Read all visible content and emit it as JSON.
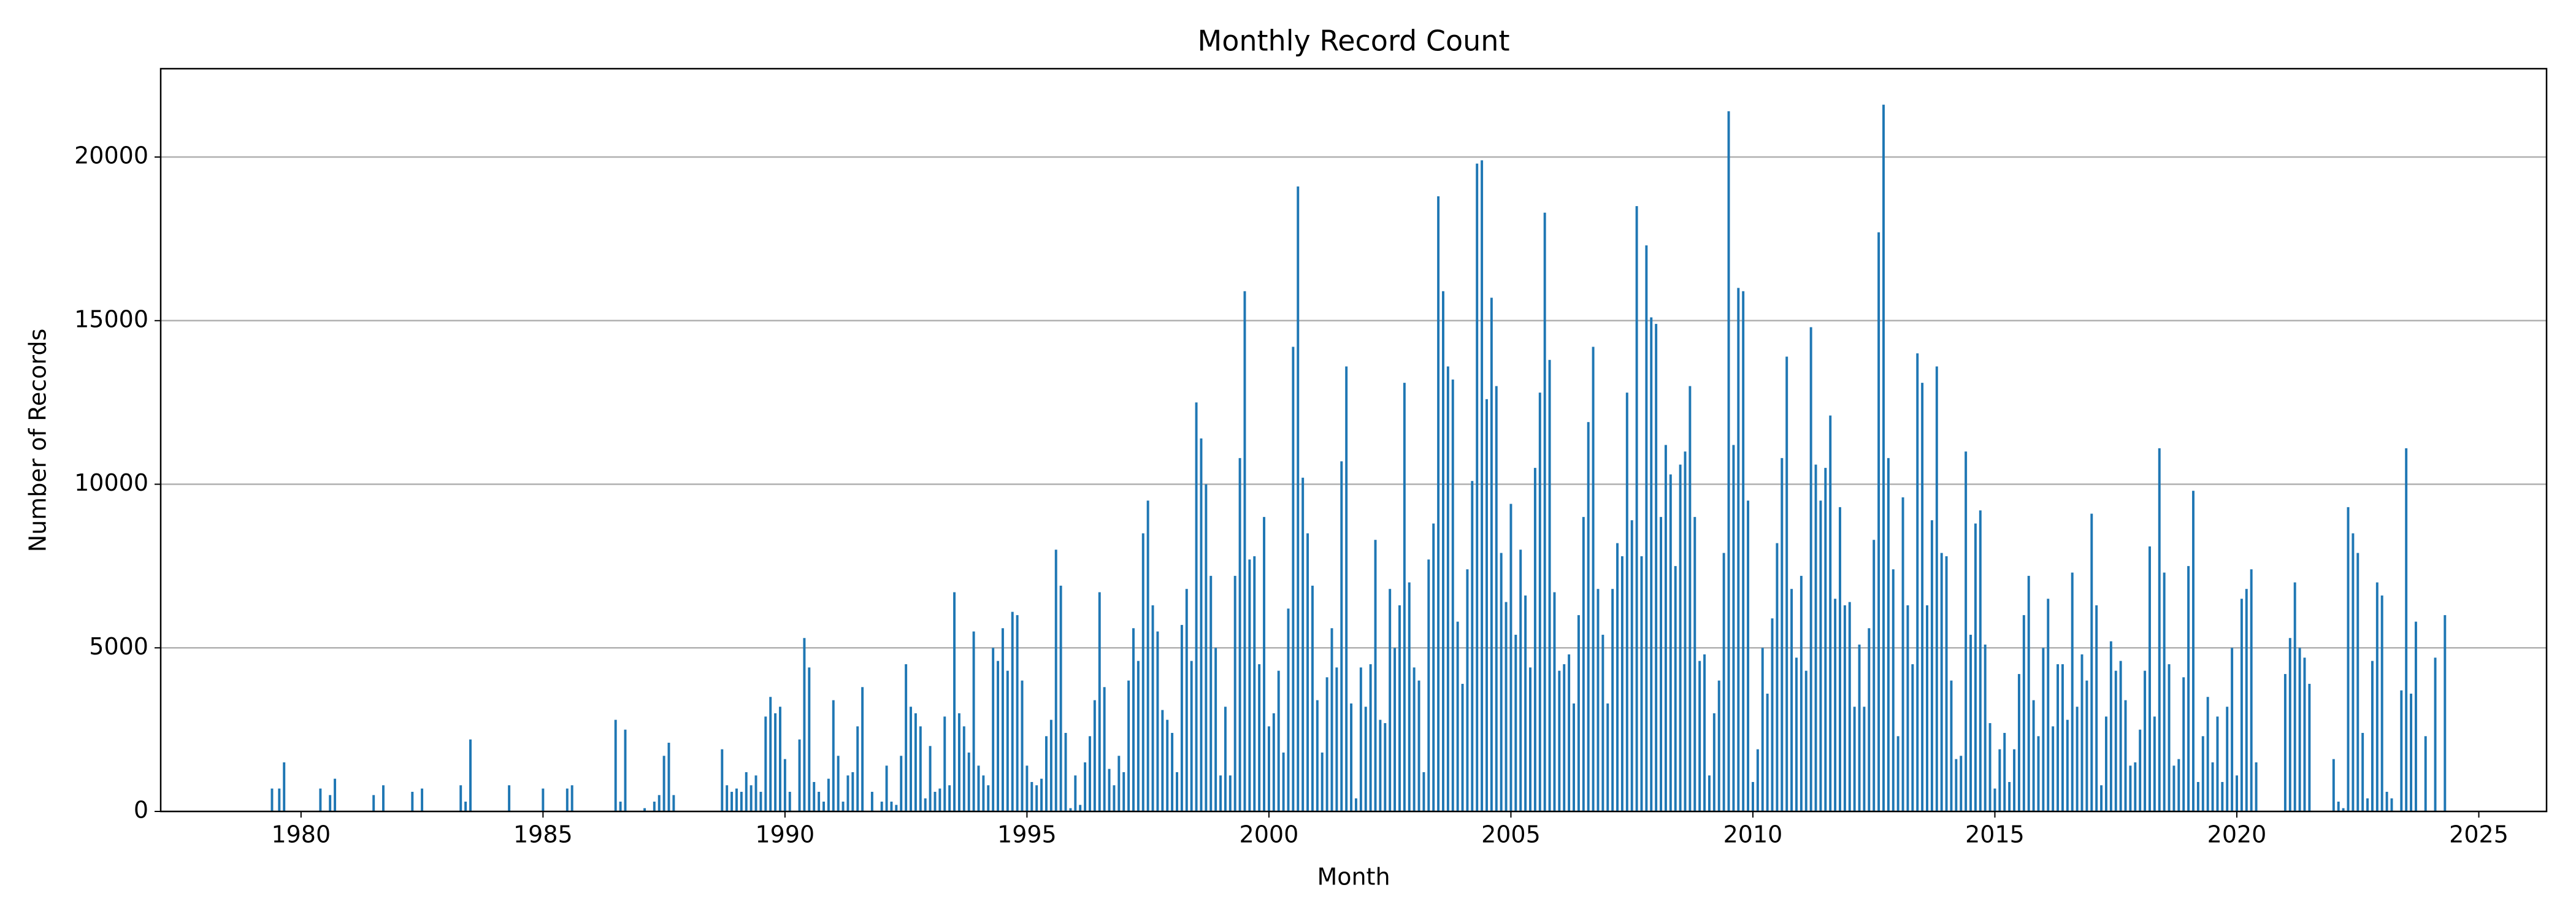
{
  "chart_data": {
    "type": "bar",
    "title": "Monthly Record Count",
    "x_label": "Month",
    "y_label": "Number of Records",
    "color": "#1f77b4",
    "grid": "y",
    "xlim": [
      1977.1,
      2026.4
    ],
    "xticks": [
      1980,
      1985,
      1990,
      1995,
      2000,
      2005,
      2010,
      2015,
      2020,
      2025
    ],
    "ylim": [
      0,
      22700
    ],
    "yticks": [
      0,
      5000,
      10000,
      15000,
      20000
    ],
    "x": [
      1979.4,
      1979.55,
      1979.65,
      1980.4,
      1980.6,
      1980.7,
      1981.5,
      1981.7,
      1982.3,
      1982.5,
      1983.3,
      1983.4,
      1983.5,
      1984.3,
      1985.0,
      1985.5,
      1985.6,
      1986.5,
      1986.6,
      1986.7,
      1987.1,
      1987.3,
      1987.4,
      1987.5,
      1987.6,
      1987.7,
      1988.7,
      1988.8,
      1988.9,
      1989.0,
      1989.1,
      1989.2,
      1989.3,
      1989.4,
      1989.5,
      1989.6,
      1989.7,
      1989.8,
      1989.9,
      1990.0,
      1990.1,
      1990.3,
      1990.4,
      1990.5,
      1990.6,
      1990.7,
      1990.8,
      1990.9,
      1991.0,
      1991.1,
      1991.2,
      1991.3,
      1991.4,
      1991.5,
      1991.6,
      1991.8,
      1992.0,
      1992.1,
      1992.2,
      1992.3,
      1992.4,
      1992.5,
      1992.6,
      1992.7,
      1992.8,
      1992.9,
      1993.0,
      1993.1,
      1993.2,
      1993.3,
      1993.4,
      1993.5,
      1993.6,
      1993.7,
      1993.8,
      1993.9,
      1994.0,
      1994.1,
      1994.2,
      1994.3,
      1994.4,
      1994.5,
      1994.6,
      1994.7,
      1994.8,
      1994.9,
      1995.0,
      1995.1,
      1995.2,
      1995.3,
      1995.4,
      1995.5,
      1995.6,
      1995.7,
      1995.8,
      1995.9,
      1996.0,
      1996.1,
      1996.2,
      1996.3,
      1996.4,
      1996.5,
      1996.6,
      1996.7,
      1996.8,
      1996.9,
      1997.0,
      1997.1,
      1997.2,
      1997.3,
      1997.4,
      1997.5,
      1997.6,
      1997.7,
      1997.8,
      1997.9,
      1998.0,
      1998.1,
      1998.2,
      1998.3,
      1998.4,
      1998.5,
      1998.6,
      1998.7,
      1998.8,
      1998.9,
      1999.0,
      1999.1,
      1999.2,
      1999.3,
      1999.4,
      1999.5,
      1999.6,
      1999.7,
      1999.8,
      1999.9,
      2000.0,
      2000.1,
      2000.2,
      2000.3,
      2000.4,
      2000.5,
      2000.6,
      2000.7,
      2000.8,
      2000.9,
      2001.0,
      2001.1,
      2001.2,
      2001.3,
      2001.4,
      2001.5,
      2001.6,
      2001.7,
      2001.8,
      2001.9,
      2002.0,
      2002.1,
      2002.2,
      2002.3,
      2002.4,
      2002.5,
      2002.6,
      2002.7,
      2002.8,
      2002.9,
      2003.0,
      2003.1,
      2003.2,
      2003.3,
      2003.4,
      2003.5,
      2003.6,
      2003.7,
      2003.8,
      2003.9,
      2004.0,
      2004.1,
      2004.2,
      2004.3,
      2004.4,
      2004.5,
      2004.6,
      2004.7,
      2004.8,
      2004.9,
      2005.0,
      2005.1,
      2005.2,
      2005.3,
      2005.4,
      2005.5,
      2005.6,
      2005.7,
      2005.8,
      2005.9,
      2006.0,
      2006.1,
      2006.2,
      2006.3,
      2006.4,
      2006.5,
      2006.6,
      2006.7,
      2006.8,
      2006.9,
      2007.0,
      2007.1,
      2007.2,
      2007.3,
      2007.4,
      2007.5,
      2007.6,
      2007.7,
      2007.8,
      2007.9,
      2008.0,
      2008.1,
      2008.2,
      2008.3,
      2008.4,
      2008.5,
      2008.6,
      2008.7,
      2008.8,
      2008.9,
      2009.0,
      2009.1,
      2009.2,
      2009.3,
      2009.4,
      2009.5,
      2009.6,
      2009.7,
      2009.8,
      2009.9,
      2010.0,
      2010.1,
      2010.2,
      2010.3,
      2010.4,
      2010.5,
      2010.6,
      2010.7,
      2010.8,
      2010.9,
      2011.0,
      2011.1,
      2011.2,
      2011.3,
      2011.4,
      2011.5,
      2011.6,
      2011.7,
      2011.8,
      2011.9,
      2012.0,
      2012.1,
      2012.2,
      2012.3,
      2012.4,
      2012.5,
      2012.6,
      2012.7,
      2012.8,
      2012.9,
      2013.0,
      2013.1,
      2013.2,
      2013.3,
      2013.4,
      2013.5,
      2013.6,
      2013.7,
      2013.8,
      2013.9,
      2014.0,
      2014.1,
      2014.2,
      2014.3,
      2014.4,
      2014.5,
      2014.6,
      2014.7,
      2014.8,
      2014.9,
      2015.0,
      2015.1,
      2015.2,
      2015.3,
      2015.4,
      2015.5,
      2015.6,
      2015.7,
      2015.8,
      2015.9,
      2016.0,
      2016.1,
      2016.2,
      2016.3,
      2016.4,
      2016.5,
      2016.6,
      2016.7,
      2016.8,
      2016.9,
      2017.0,
      2017.1,
      2017.2,
      2017.3,
      2017.4,
      2017.5,
      2017.6,
      2017.7,
      2017.8,
      2017.9,
      2018.0,
      2018.1,
      2018.2,
      2018.3,
      2018.4,
      2018.5,
      2018.6,
      2018.7,
      2018.8,
      2018.9,
      2019.0,
      2019.1,
      2019.2,
      2019.3,
      2019.4,
      2019.5,
      2019.6,
      2019.7,
      2019.8,
      2019.9,
      2020.0,
      2020.1,
      2020.2,
      2020.3,
      2020.4,
      2021.0,
      2021.1,
      2021.2,
      2021.3,
      2021.4,
      2021.5,
      2022.0,
      2022.1,
      2022.2,
      2022.3,
      2022.4,
      2022.5,
      2022.6,
      2022.7,
      2022.8,
      2022.9,
      2023.0,
      2023.1,
      2023.2,
      2023.4,
      2023.5,
      2023.6,
      2023.7,
      2023.9,
      2024.1,
      2024.3
    ],
    "values": [
      700,
      700,
      1500,
      700,
      500,
      1000,
      500,
      800,
      600,
      700,
      800,
      300,
      2200,
      800,
      700,
      700,
      800,
      2800,
      300,
      2500,
      100,
      300,
      500,
      1700,
      2100,
      500,
      1900,
      800,
      600,
      700,
      600,
      1200,
      800,
      1100,
      600,
      2900,
      3500,
      3000,
      3200,
      1600,
      600,
      2200,
      5300,
      4400,
      900,
      600,
      300,
      1000,
      3400,
      1700,
      300,
      1100,
      1200,
      2600,
      3800,
      600,
      300,
      1400,
      300,
      200,
      1700,
      4500,
      3200,
      3000,
      2600,
      400,
      2000,
      600,
      700,
      2900,
      800,
      6700,
      3000,
      2600,
      1800,
      5500,
      1400,
      1100,
      800,
      5000,
      4600,
      5600,
      4300,
      6100,
      6000,
      4000,
      1400,
      900,
      800,
      1000,
      2300,
      2800,
      8000,
      6900,
      2400,
      100,
      1100,
      200,
      1500,
      2300,
      3400,
      6700,
      3800,
      1300,
      800,
      1700,
      1200,
      4000,
      5600,
      4600,
      8500,
      9500,
      6300,
      5500,
      3100,
      2800,
      2400,
      1200,
      5700,
      6800,
      4600,
      12500,
      11400,
      10000,
      7200,
      5000,
      1100,
      3200,
      1100,
      7200,
      10800,
      15900,
      7700,
      7800,
      4500,
      9000,
      2600,
      3000,
      4300,
      1800,
      6200,
      14200,
      19100,
      10200,
      8500,
      6900,
      3400,
      1800,
      4100,
      5600,
      4400,
      10700,
      13600,
      3300,
      400,
      4400,
      3200,
      4500,
      8300,
      2800,
      2700,
      6800,
      5000,
      6300,
      13100,
      7000,
      4400,
      4000,
      1200,
      7700,
      8800,
      18800,
      15900,
      13600,
      13200,
      5800,
      3900,
      7400,
      10100,
      19800,
      19900,
      12600,
      15700,
      13000,
      7900,
      6400,
      9400,
      5400,
      8000,
      6600,
      4400,
      10500,
      12800,
      18300,
      13800,
      6700,
      4300,
      4500,
      4800,
      3300,
      6000,
      9000,
      11900,
      14200,
      6800,
      5400,
      3300,
      6800,
      8200,
      7800,
      12800,
      8900,
      18500,
      7800,
      17300,
      15100,
      14900,
      9000,
      11200,
      10300,
      7500,
      10600,
      11000,
      13000,
      9000,
      4600,
      4800,
      1100,
      3000,
      4000,
      7900,
      21400,
      11200,
      16000,
      15900,
      9500,
      900,
      1900,
      5000,
      3600,
      5900,
      8200,
      10800,
      13900,
      6800,
      4700,
      7200,
      4300,
      14800,
      10600,
      9500,
      10500,
      12100,
      6500,
      9300,
      6300,
      6400,
      3200,
      5100,
      3200,
      5600,
      8300,
      17700,
      21600,
      10800,
      7400,
      2300,
      9600,
      6300,
      4500,
      14000,
      13100,
      6300,
      8900,
      13600,
      7900,
      7800,
      4000,
      1600,
      1700,
      11000,
      5400,
      8800,
      9200,
      5100,
      2700,
      700,
      1900,
      2400,
      900,
      1900,
      4200,
      6000,
      7200,
      3400,
      2300,
      5000,
      6500,
      2600,
      4500,
      4500,
      2800,
      7300,
      3200,
      4800,
      4000,
      9100,
      6300,
      800,
      2900,
      5200,
      4300,
      4600,
      3400,
      1400,
      1500,
      2500,
      4300,
      8100,
      2900,
      11100,
      7300,
      4500,
      1400,
      1600,
      4100,
      7500,
      9800,
      900,
      2300,
      3500,
      1500,
      2900,
      900,
      3200,
      5000,
      1100,
      6500,
      6800,
      7400,
      1500,
      4200,
      5300,
      7000,
      5000,
      4700,
      3900,
      1600,
      300,
      100,
      9300,
      8500,
      7900,
      2400,
      400,
      4600,
      7000,
      6600,
      600,
      400,
      3700,
      11100,
      3600,
      5800,
      2300,
      4700,
      6000
    ]
  }
}
